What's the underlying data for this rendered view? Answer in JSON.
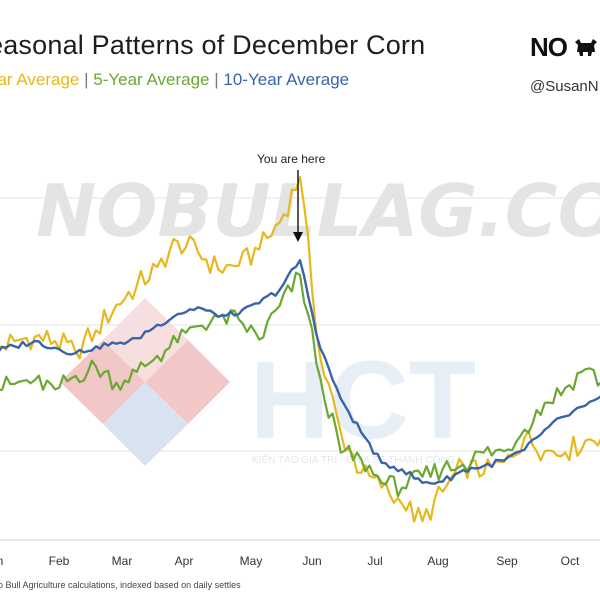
{
  "chart_data": {
    "type": "line",
    "title": "easonal Patterns of December Corn",
    "legend_labels": [
      "ear Average",
      "5-Year Average",
      "10-Year Average"
    ],
    "x_ticks": [
      "n",
      "Feb",
      "Mar",
      "Apr",
      "May",
      "Jun",
      "Jul",
      "Aug",
      "Sep",
      "Oct"
    ],
    "series": [
      {
        "name": "ear Average",
        "color": "#e6b81e",
        "values": [
          0.4,
          1.6,
          2.2,
          1.6,
          0.0,
          3.2,
          7.0,
          9.8,
          12.6,
          16.4,
          14.8,
          12.2,
          12.8,
          15.2,
          19.2,
          26.0,
          -1.0,
          -12.0,
          -18.0,
          -20.2,
          -22.6,
          -25.2,
          -20.8,
          -16.8,
          -18.2,
          -16.4,
          -12.8,
          -14.8,
          -15.0,
          -13.2,
          -12.0
        ]
      },
      {
        "name": "5-Year Average",
        "color": "#6aa832",
        "values": [
          -5.4,
          -4.8,
          -4.2,
          -5.6,
          -3.6,
          -2.2,
          -4.6,
          -3.0,
          -0.6,
          1.4,
          3.8,
          5.2,
          4.8,
          1.8,
          6.8,
          11.4,
          -4.0,
          -15.0,
          -16.0,
          -19.5,
          -20.2,
          -18.6,
          -17.4,
          -16.8,
          -15.0,
          -14.8,
          -11.6,
          -7.6,
          -5.4,
          -2.6,
          -5.0
        ]
      },
      {
        "name": "10-Year Average",
        "color": "#3a64a8",
        "values": [
          0.0,
          0.8,
          1.6,
          0.6,
          -0.2,
          0.8,
          1.2,
          2.0,
          4.0,
          5.6,
          6.6,
          5.2,
          5.6,
          7.2,
          9.2,
          13.6,
          0.5,
          -7.0,
          -12.0,
          -16.5,
          -17.5,
          -19.5,
          -19.3,
          -17.6,
          -17.0,
          -16.2,
          -14.6,
          -11.6,
          -9.6,
          -8.0,
          -6.8
        ]
      }
    ],
    "annotation": "You are here",
    "ylim": [
      -28,
      30
    ],
    "grid": "horizontal",
    "legend": "subtitle"
  },
  "footer": {
    "source": "o Bull Agriculture calculations, indexed based on daily settles"
  },
  "branding": {
    "logo_text": "NO",
    "handle": "@SusanN",
    "watermark_text": "NOBULLAG.COM",
    "hct_text": "HCT",
    "hct_tagline": "KIẾN TẠO GIÁ TRỊ - CHIA SẺ THÀNH CÔNG"
  }
}
